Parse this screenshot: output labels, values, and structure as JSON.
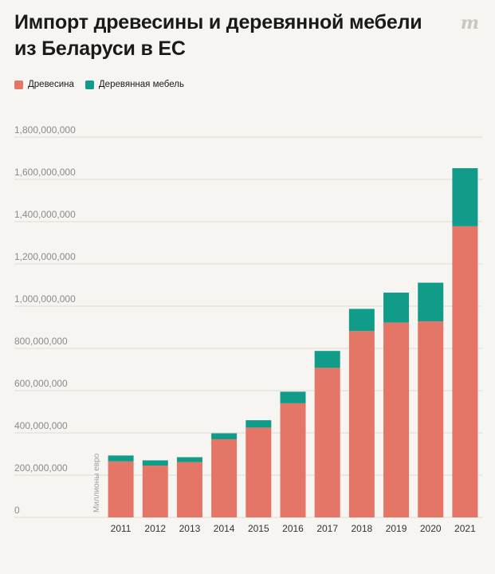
{
  "title": "Импорт древесины и деревянной мебели из Беларуси в ЕС",
  "logo_text": "m",
  "colors": {
    "wood": "#e57567",
    "furniture": "#119c8a"
  },
  "chart_data": {
    "type": "bar",
    "stacked": true,
    "categories": [
      "2011",
      "2012",
      "2013",
      "2014",
      "2015",
      "2016",
      "2017",
      "2018",
      "2019",
      "2020",
      "2021"
    ],
    "series": [
      {
        "name": "Древесина",
        "color": "#e57567",
        "values": [
          265000000,
          245000000,
          262000000,
          370000000,
          425000000,
          540000000,
          708000000,
          882000000,
          922000000,
          928000000,
          1378000000
        ]
      },
      {
        "name": "Деревянная мебель",
        "color": "#119c8a",
        "values": [
          28000000,
          25000000,
          23000000,
          28000000,
          35000000,
          55000000,
          80000000,
          105000000,
          142000000,
          183000000,
          275000000
        ]
      }
    ],
    "yticks": [
      "0",
      "200,000,000",
      "400,000,000",
      "600,000,000",
      "800,000,000",
      "1,000,000,000",
      "1,200,000,000",
      "1,400,000,000",
      "1,600,000,000",
      "1,800,000,000"
    ],
    "ylim": [
      0,
      1800000000
    ],
    "ylabel": "Миллионы евро",
    "legend_position": "top-left",
    "grid": true
  }
}
